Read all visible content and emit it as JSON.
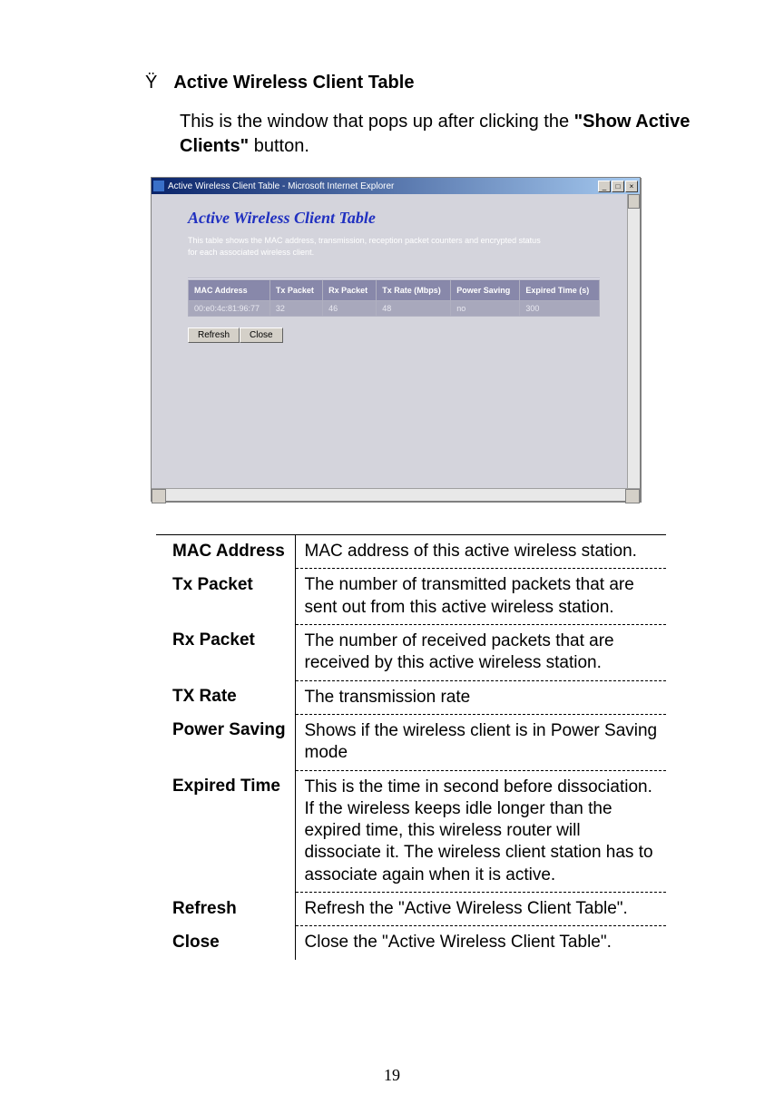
{
  "section": {
    "bullet": "Ÿ",
    "title": "Active Wireless Client Table",
    "intro_pre": "This is the window that pops up after clicking the ",
    "intro_bold": "\"Show Active Clients\"",
    "intro_post": " button."
  },
  "ie": {
    "titlebar": "Active Wireless Client Table - Microsoft Internet Explorer",
    "min": "_",
    "max": "□",
    "close": "×",
    "panel_title": "Active Wireless Client Table",
    "panel_desc": "This table shows the MAC address, transmission, reception packet counters and encrypted status for each associated wireless client.",
    "headers": [
      "MAC Address",
      "Tx Packet",
      "Rx Packet",
      "Tx Rate (Mbps)",
      "Power Saving",
      "Expired Time (s)"
    ],
    "row": [
      "00:e0:4c:81:96:77",
      "32",
      "46",
      "48",
      "no",
      "300"
    ],
    "refresh": "Refresh",
    "close_btn": "Close"
  },
  "defs": [
    {
      "term": "MAC Address",
      "desc": "MAC address of this active wireless station."
    },
    {
      "term": "Tx Packet",
      "desc": "The number of transmitted packets that are sent out from this active wireless station."
    },
    {
      "term": "Rx Packet",
      "desc": "The number of received packets that are received by this active wireless station."
    },
    {
      "term": "TX Rate",
      "desc": "The transmission rate"
    },
    {
      "term": "Power Saving",
      "desc": "Shows if the wireless client is in Power Saving mode"
    },
    {
      "term": "Expired Time",
      "desc": "This is the time in second before dissociation. If the wireless keeps idle longer than the expired time, this wireless router will dissociate it. The wireless client station has to associate again when it is active."
    },
    {
      "term": "Refresh",
      "desc": "Refresh the \"Active Wireless Client Table\"."
    },
    {
      "term": "Close",
      "desc": "Close the \"Active Wireless Client Table\"."
    }
  ],
  "page_number": "19"
}
